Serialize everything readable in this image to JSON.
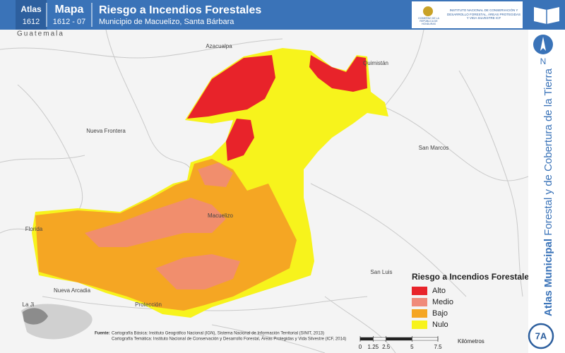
{
  "header": {
    "atlas_label": "Atlas",
    "atlas_number": "1612",
    "map_label": "Mapa",
    "map_number": "1612 - 07",
    "title": "Riesgo a Incendios Forestales",
    "subtitle": "Municipio de Macuelizo, Santa Bárbara",
    "logo_left": "GOBIERNO DE LA REPÚBLICA DE HONDURAS",
    "logo_right": "INSTITUTO NACIONAL DE CONSERVACIÓN Y DESARROLLO FORESTAL, ÁREAS PROTEGIDAS Y VIDA SILVESTRE ICF"
  },
  "map": {
    "country_label": "Guatemala",
    "places": [
      "Azacualpa",
      "Quimistán",
      "Nueva Frontera",
      "San Marcos",
      "Macuelizo",
      "Florida",
      "Protección",
      "San Luis",
      "Nueva Arcadia",
      "La Ji"
    ]
  },
  "legend": {
    "title": "Riesgo a Incendios Forestales",
    "items": [
      {
        "label": "Alto",
        "color": "#e8232a"
      },
      {
        "label": "Medio",
        "color": "#f08a7a"
      },
      {
        "label": "Bajo",
        "color": "#f5a623"
      },
      {
        "label": "Nulo",
        "color": "#f7f31c"
      }
    ]
  },
  "source": {
    "label": "Fuente:",
    "lines": [
      "Cartografía Básica: Instituto Geográfico Nacional (IGN), Sistema Nacional de Información Territorial (SINIT, 2013)",
      "Cartografía Temática: Instituto Nacional de Conservación y Desarrollo Forestal, Áreas Protegidas y Vida Silvestre (ICF, 2014)"
    ]
  },
  "scale": {
    "ticks": [
      0,
      1.25,
      2.5,
      5,
      7.5
    ],
    "unit": "Kilómetros"
  },
  "sidebar": {
    "north": "N",
    "series_bold": "Atlas Municipal",
    "series_rest": " Forestal y de Cobertura de la Tierra",
    "page": "7A"
  }
}
